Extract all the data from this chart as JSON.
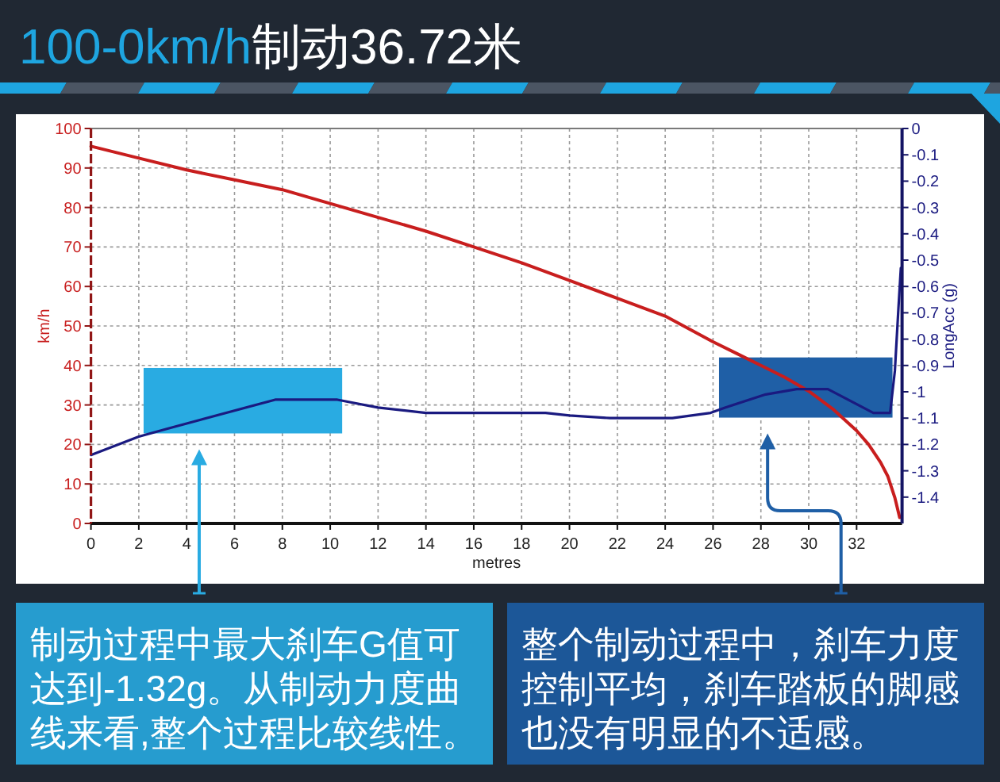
{
  "chart_data": {
    "type": "line",
    "title": "100-0km/h制动36.72米",
    "xlabel": "metres",
    "ylabel": "km/h",
    "y2label": "LongAcc (g)",
    "series": [
      {
        "color": "#c81e1e",
        "x": [
          0,
          2,
          4,
          6,
          8,
          10,
          12,
          14,
          16,
          18,
          20,
          22,
          24,
          26,
          27,
          28,
          29,
          30,
          31,
          32,
          32.5,
          33,
          33.3,
          33.6,
          33.8
        ],
        "values": [
          95.5,
          92.5,
          89.5,
          87,
          84.5,
          81,
          77.5,
          74,
          70,
          66,
          61.5,
          57,
          52.5,
          46,
          43,
          40,
          37,
          33.5,
          29,
          23.5,
          20,
          15.5,
          12,
          6.5,
          1.5
        ]
      },
      {
        "color": "#1a1a80",
        "axis": "y2",
        "x": [
          0,
          2,
          3.2,
          7.7,
          10.3,
          12,
          14,
          19,
          20,
          21.7,
          24.3,
          25.9,
          26.5,
          28.2,
          29.5,
          30.8,
          32.7,
          33.4,
          33.6,
          33.75,
          33.85
        ],
        "values": [
          -1.24,
          -1.17,
          -1.14,
          -1.03,
          -1.03,
          -1.06,
          -1.08,
          -1.08,
          -1.09,
          -1.1,
          -1.1,
          -1.08,
          -1.06,
          -1.01,
          -0.99,
          -0.99,
          -1.08,
          -1.08,
          -0.92,
          -0.68,
          -0.53
        ]
      }
    ],
    "xlim": [
      0,
      33.9
    ],
    "xticks": [
      0,
      2,
      4,
      6,
      8,
      10,
      12,
      14,
      16,
      18,
      20,
      22,
      24,
      26,
      28,
      30,
      32
    ],
    "ylim": [
      0,
      100
    ],
    "yticks": [
      0,
      10,
      20,
      30,
      40,
      50,
      60,
      70,
      80,
      90,
      100
    ],
    "y2lim": [
      -1.5,
      0
    ],
    "y2ticks": [
      0,
      -0.1,
      -0.2,
      -0.3,
      -0.4,
      -0.5,
      -0.6,
      -0.7,
      -0.8,
      -0.9,
      -1,
      -1.1,
      -1.2,
      -1.3,
      -1.4
    ],
    "grid": true,
    "legend": "bottom",
    "bands": [
      {
        "axis": "x",
        "from": 2.2,
        "to": 10.5,
        "color": "#29abe2",
        "label": "制动过程中最大刹车G值可达到-1.32g。从制动力度曲线来看,整个过程比较线性。"
      },
      {
        "axis": "x",
        "from": 26.25,
        "to": 33.5,
        "color": "#1f5fa6",
        "label": "整个制动过程中，刹车力度控制平均，刹车踏板的脚感也没有明显的不适感。"
      }
    ]
  }
}
